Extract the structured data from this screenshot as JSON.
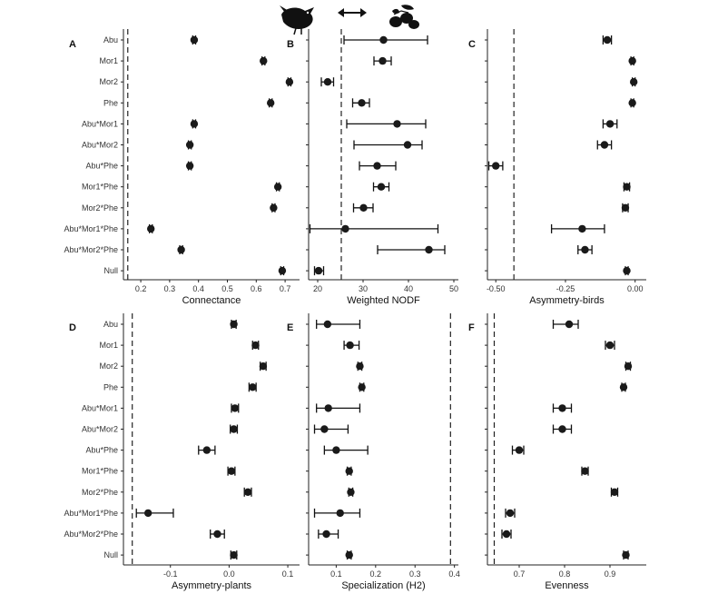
{
  "figure": {
    "icons": [
      "bird-icon",
      "double-arrow-icon",
      "olive-fruit-icon"
    ]
  },
  "categories": [
    "Abu",
    "Mor1",
    "Mor2",
    "Phe",
    "Abu*Mor1",
    "Abu*Mor2",
    "Abu*Phe",
    "Mor1*Phe",
    "Mor2*Phe",
    "Abu*Mor1*Phe",
    "Abu*Mor2*Phe",
    "Null"
  ],
  "chart_data": [
    {
      "panel": "A",
      "type": "scatter",
      "xlabel": "Connectance",
      "xlim": [
        0.14,
        0.75
      ],
      "xticks": [
        0.2,
        0.3,
        0.4,
        0.5,
        0.6,
        0.7
      ],
      "tick_labels": [
        "0.2",
        "0.3",
        "0.4",
        "0.5",
        "0.6",
        "0.7"
      ],
      "reference_line": 0.155,
      "values": [
        0.385,
        0.625,
        0.715,
        0.65,
        0.385,
        0.37,
        0.37,
        0.675,
        0.66,
        0.235,
        0.34,
        0.69
      ],
      "lower": [
        0.38,
        0.62,
        0.71,
        0.645,
        0.38,
        0.365,
        0.365,
        0.67,
        0.655,
        0.23,
        0.335,
        0.685
      ],
      "upper": [
        0.39,
        0.63,
        0.72,
        0.655,
        0.39,
        0.375,
        0.375,
        0.68,
        0.665,
        0.24,
        0.345,
        0.695
      ]
    },
    {
      "panel": "B",
      "type": "scatter",
      "xlabel": "Weighted NODF",
      "xlim": [
        18,
        51
      ],
      "xticks": [
        20,
        30,
        40,
        50
      ],
      "tick_labels": [
        "20",
        "30",
        "40",
        "50"
      ],
      "reference_line": 25.2,
      "values": [
        34.5,
        34.3,
        22.2,
        29.7,
        37.5,
        39.8,
        33.1,
        34.0,
        30.1,
        26.1,
        44.5,
        20.2
      ],
      "lower": [
        25.8,
        32.4,
        20.8,
        27.7,
        26.4,
        28.0,
        29.2,
        32.3,
        27.9,
        18.3,
        33.2,
        19.3
      ],
      "upper": [
        44.2,
        36.2,
        23.5,
        31.4,
        43.8,
        43.0,
        37.2,
        35.7,
        32.2,
        46.5,
        48.0,
        21.3
      ]
    },
    {
      "panel": "C",
      "type": "scatter",
      "xlabel": "Asymmetry-birds",
      "xlim": [
        -0.53,
        0.04
      ],
      "xticks": [
        -0.5,
        -0.25,
        0.0
      ],
      "tick_labels": [
        "-0.50",
        "-0.25",
        "0.00"
      ],
      "reference_line": -0.435,
      "values": [
        -0.1,
        -0.01,
        -0.005,
        -0.01,
        -0.09,
        -0.11,
        -0.5,
        -0.03,
        -0.035,
        -0.19,
        -0.18,
        -0.03
      ],
      "lower": [
        -0.115,
        -0.015,
        -0.01,
        -0.015,
        -0.115,
        -0.135,
        -0.525,
        -0.04,
        -0.045,
        -0.3,
        -0.205,
        -0.035
      ],
      "upper": [
        -0.085,
        -0.005,
        0.0,
        -0.005,
        -0.065,
        -0.085,
        -0.475,
        -0.02,
        -0.025,
        -0.11,
        -0.155,
        -0.025
      ]
    },
    {
      "panel": "D",
      "type": "scatter",
      "xlabel": "Asymmetry-plants",
      "xlim": [
        -0.18,
        0.12
      ],
      "xticks": [
        -0.1,
        0.0,
        0.1
      ],
      "tick_labels": [
        "-0.1",
        "0.0",
        "0.1"
      ],
      "reference_line": -0.165,
      "values": [
        0.008,
        0.045,
        0.058,
        0.04,
        0.01,
        0.008,
        -0.038,
        0.004,
        0.032,
        -0.138,
        -0.02,
        0.008
      ],
      "lower": [
        0.004,
        0.04,
        0.053,
        0.034,
        0.004,
        0.002,
        -0.052,
        -0.002,
        0.026,
        -0.158,
        -0.032,
        0.003
      ],
      "upper": [
        0.012,
        0.05,
        0.063,
        0.046,
        0.016,
        0.014,
        -0.024,
        0.01,
        0.038,
        -0.095,
        -0.008,
        0.013
      ]
    },
    {
      "panel": "E",
      "type": "scatter",
      "xlabel": "Specialization (H2)",
      "xlim": [
        0.03,
        0.41
      ],
      "xticks": [
        0.1,
        0.2,
        0.3,
        0.4
      ],
      "tick_labels": [
        "0.1",
        "0.2",
        "0.3",
        "0.4"
      ],
      "reference_line": 0.39,
      "values": [
        0.078,
        0.135,
        0.16,
        0.165,
        0.08,
        0.07,
        0.1,
        0.133,
        0.137,
        0.11,
        0.075,
        0.133
      ],
      "lower": [
        0.05,
        0.12,
        0.155,
        0.16,
        0.05,
        0.045,
        0.07,
        0.128,
        0.132,
        0.045,
        0.055,
        0.128
      ],
      "upper": [
        0.16,
        0.158,
        0.165,
        0.17,
        0.16,
        0.13,
        0.18,
        0.138,
        0.142,
        0.16,
        0.105,
        0.138
      ]
    },
    {
      "panel": "F",
      "type": "scatter",
      "xlabel": "Evenness",
      "xlim": [
        0.63,
        0.98
      ],
      "xticks": [
        0.7,
        0.8,
        0.9
      ],
      "tick_labels": [
        "0.7",
        "0.8",
        "0.9"
      ],
      "reference_line": 0.645,
      "values": [
        0.81,
        0.9,
        0.94,
        0.93,
        0.795,
        0.795,
        0.7,
        0.845,
        0.91,
        0.68,
        0.672,
        0.935
      ],
      "lower": [
        0.775,
        0.89,
        0.935,
        0.926,
        0.775,
        0.775,
        0.685,
        0.838,
        0.903,
        0.67,
        0.662,
        0.93
      ],
      "upper": [
        0.83,
        0.91,
        0.945,
        0.934,
        0.815,
        0.815,
        0.71,
        0.852,
        0.917,
        0.69,
        0.682,
        0.94
      ]
    }
  ]
}
